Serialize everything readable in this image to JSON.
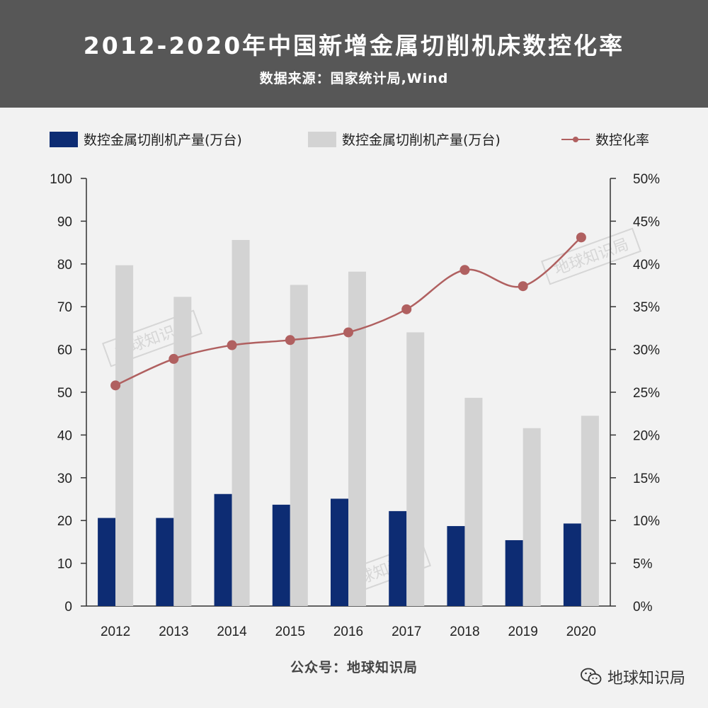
{
  "header": {
    "title": "2012-2020年中国新增金属切削机床数控化率",
    "subtitle": "数据来源：国家统计局,Wind"
  },
  "footer": {
    "text": "公众号：地球知识局",
    "brand": "地球知识局",
    "brand_icon": "wechat-icon"
  },
  "watermark_text": "地球知识局",
  "colors": {
    "header_bg": "#575757",
    "cnc_bar": "#0d2c73",
    "total_bar": "#d3d3d3",
    "rate_line": "#b06060"
  },
  "chart_data": {
    "type": "bar",
    "categories": [
      "2012",
      "2013",
      "2014",
      "2015",
      "2016",
      "2017",
      "2018",
      "2019",
      "2020"
    ],
    "series": [
      {
        "name": "数控金属切削机产量(万台)",
        "type": "bar",
        "axis": "left",
        "values": [
          20.6,
          20.6,
          26.2,
          23.7,
          25.1,
          22.2,
          18.7,
          15.4,
          19.3
        ]
      },
      {
        "name": "数控金属切削机产量(万台)",
        "type": "bar",
        "axis": "left",
        "values": [
          79.7,
          72.3,
          85.6,
          75.1,
          78.2,
          64.0,
          48.7,
          41.6,
          44.5
        ]
      },
      {
        "name": "数控化率",
        "type": "line",
        "axis": "right",
        "values": [
          25.8,
          28.9,
          30.5,
          31.1,
          32.0,
          34.7,
          39.3,
          37.4,
          43.1
        ]
      }
    ],
    "y_left": {
      "min": 0,
      "max": 100,
      "ticks": [
        "0",
        "10",
        "20",
        "30",
        "40",
        "50",
        "60",
        "70",
        "80",
        "90",
        "100"
      ]
    },
    "y_right": {
      "min": 0,
      "max": 50,
      "ticks": [
        "0%",
        "5%",
        "10%",
        "15%",
        "20%",
        "25%",
        "30%",
        "35%",
        "40%",
        "45%",
        "50%"
      ]
    },
    "legend_position": "top",
    "grid": false
  }
}
